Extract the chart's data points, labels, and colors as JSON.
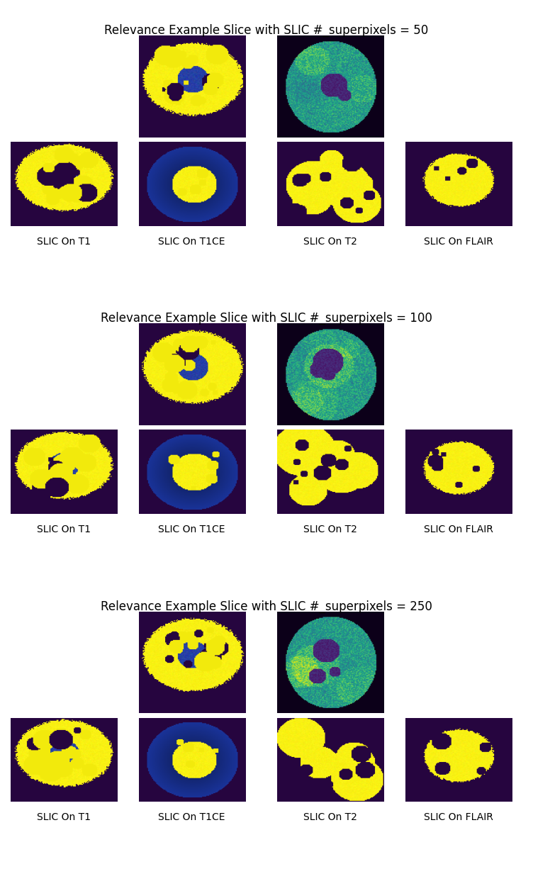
{
  "title_50": "Relevance Example Slice with SLIC #_superpixels = 50",
  "title_100": "Relevance Example Slice with SLIC #_superpixels = 100",
  "title_250": "Relevance Example Slice with SLIC #_superpixels = 250",
  "labels": [
    "SLIC On T1",
    "SLIC On T1CE",
    "SLIC On T2",
    "SLIC On FLAIR"
  ],
  "bg_color": "#ffffff",
  "title_fontsize": 12,
  "label_fontsize": 10
}
